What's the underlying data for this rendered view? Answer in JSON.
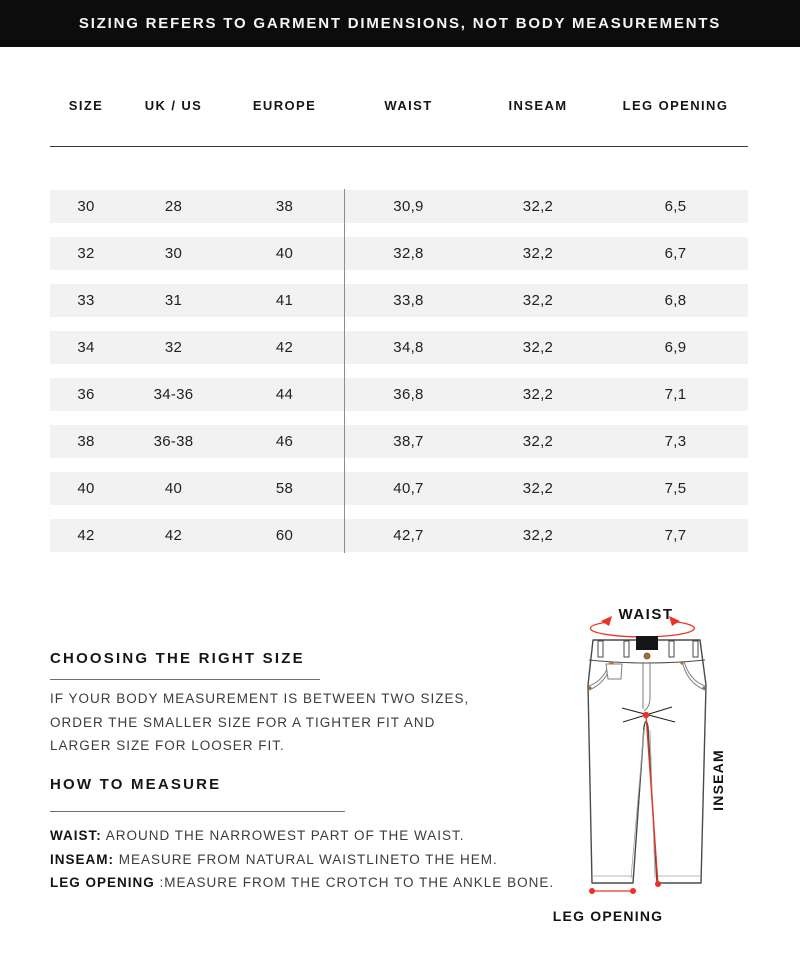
{
  "banner": {
    "text": "SIZING REFERS TO GARMENT DIMENSIONS, NOT BODY MEASUREMENTS"
  },
  "table": {
    "columns": [
      "SIZE",
      "UK / US",
      "EUROPE",
      "WAIST",
      "INSEAM",
      "LEG OPENING"
    ],
    "rows": [
      [
        "30",
        "28",
        "38",
        "30,9",
        "32,2",
        "6,5"
      ],
      [
        "32",
        "30",
        "40",
        "32,8",
        "32,2",
        "6,7"
      ],
      [
        "33",
        "31",
        "41",
        "33,8",
        "32,2",
        "6,8"
      ],
      [
        "34",
        "32",
        "42",
        "34,8",
        "32,2",
        "6,9"
      ],
      [
        "36",
        "34-36",
        "44",
        "36,8",
        "32,2",
        "7,1"
      ],
      [
        "38",
        "36-38",
        "46",
        "38,7",
        "32,2",
        "7,3"
      ],
      [
        "40",
        "40",
        "58",
        "40,7",
        "32,2",
        "7,5"
      ],
      [
        "42",
        "42",
        "60",
        "42,7",
        "32,2",
        "7,7"
      ]
    ]
  },
  "choosing": {
    "heading": "CHOOSING THE RIGHT SIZE",
    "lines": [
      "IF YOUR BODY MEASUREMENT IS BETWEEN TWO SIZES,",
      "ORDER THE SMALLER SIZE FOR A TIGHTER FIT AND",
      "LARGER SIZE FOR LOOSER FIT."
    ]
  },
  "how_to_measure": {
    "heading": "HOW TO MEASURE",
    "lines": [
      {
        "label": "WAIST:",
        "text": " AROUND THE NARROWEST PART OF THE WAIST."
      },
      {
        "label": "INSEAM:",
        "text": " MEASURE FROM NATURAL WAISTLINETO THE HEM."
      },
      {
        "label": "LEG OPENING",
        "text": " :MEASURE FROM THE CROTCH TO THE ANKLE BONE."
      }
    ]
  },
  "diagram": {
    "waist_label": "WAIST",
    "inseam_label": "INSEAM",
    "leg_opening_label": "LEG OPENING"
  },
  "colors": {
    "banner_bg": "#0c0c0c",
    "row_bg": "#f2f2f2",
    "accent_red": "#ee3124",
    "outline_gray": "#4a4a4a"
  }
}
